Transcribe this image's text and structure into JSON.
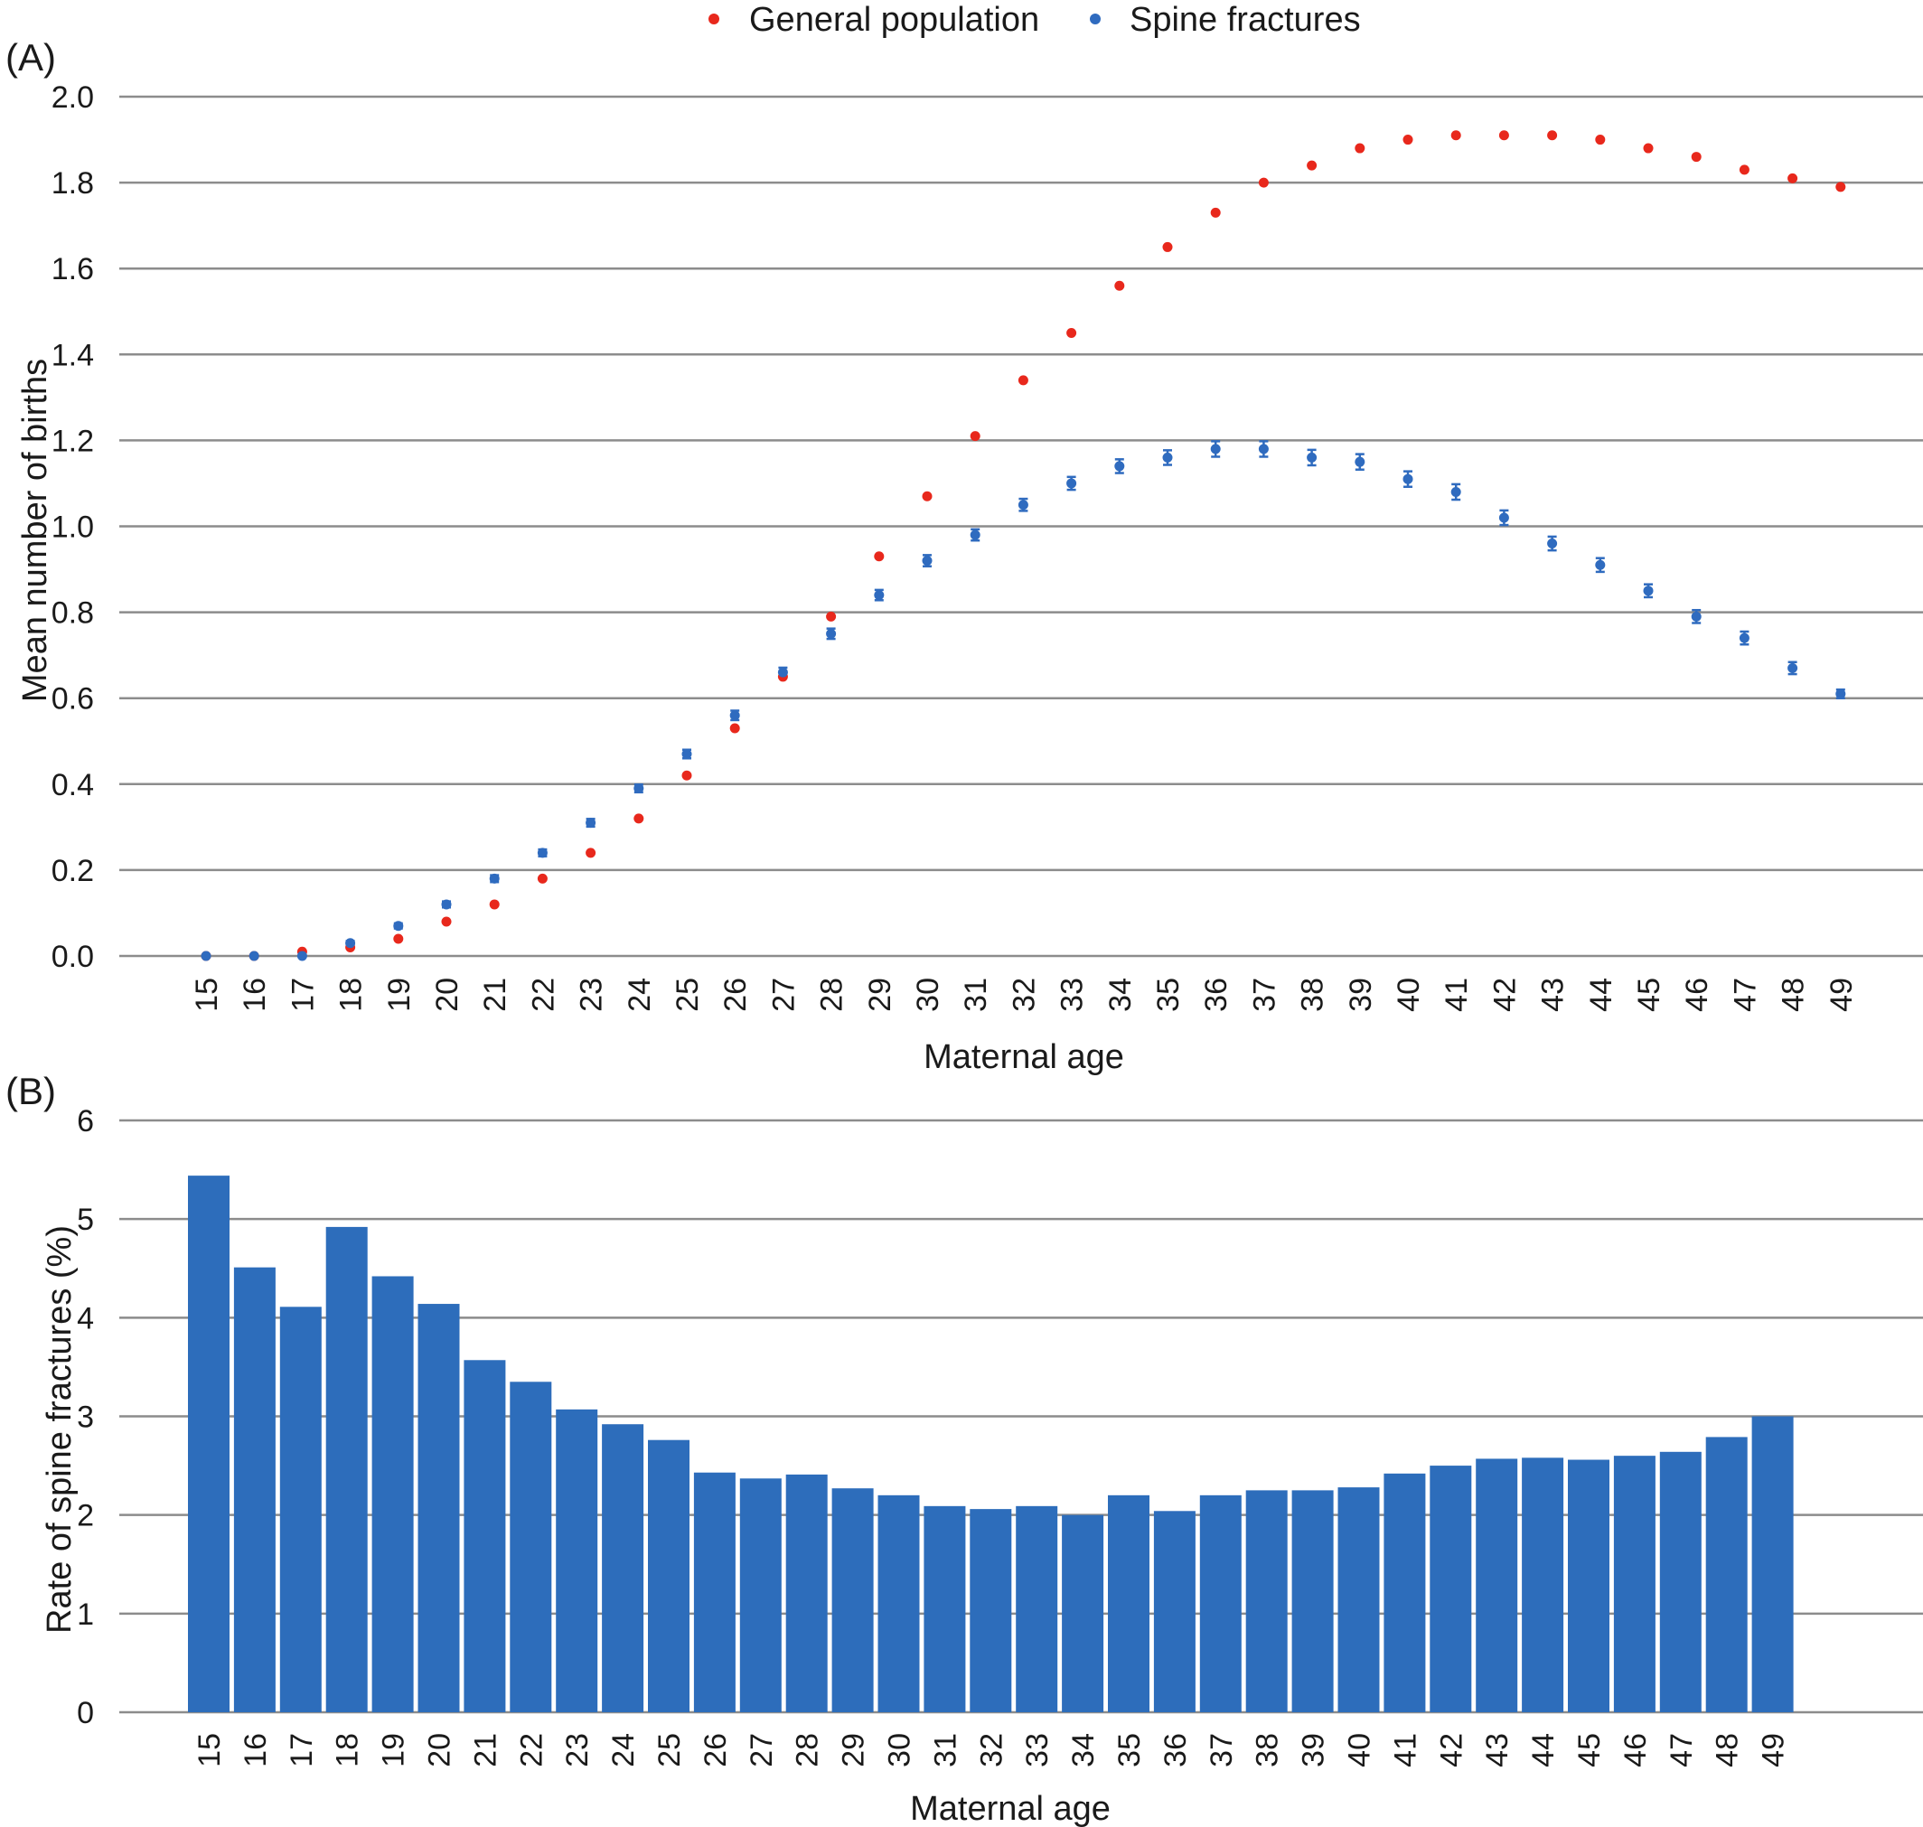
{
  "chart_data": [
    {
      "panel_label": "(A)",
      "type": "scatter",
      "xlabel": "Maternal age",
      "ylabel": "Mean number of births",
      "ylim": [
        0,
        2.0
      ],
      "yticks": [
        "0.0",
        "0.2",
        "0.4",
        "0.6",
        "0.8",
        "1.0",
        "1.2",
        "1.4",
        "1.6",
        "1.8",
        "2.0"
      ],
      "grid": "horizontal",
      "legend_position": "top-center",
      "x": [
        15,
        16,
        17,
        18,
        19,
        20,
        21,
        22,
        23,
        24,
        25,
        26,
        27,
        28,
        29,
        30,
        31,
        32,
        33,
        34,
        35,
        36,
        37,
        38,
        39,
        40,
        41,
        42,
        43,
        44,
        45,
        46,
        47,
        48,
        49
      ],
      "series": [
        {
          "name": "General population",
          "color": "#e8281c",
          "values": [
            0.0,
            0.0,
            0.01,
            0.02,
            0.04,
            0.08,
            0.12,
            0.18,
            0.24,
            0.32,
            0.42,
            0.53,
            0.65,
            0.79,
            0.93,
            1.07,
            1.21,
            1.34,
            1.45,
            1.56,
            1.65,
            1.73,
            1.8,
            1.84,
            1.88,
            1.9,
            1.91,
            1.91,
            1.91,
            1.9,
            1.88,
            1.86,
            1.83,
            1.81,
            1.79
          ]
        },
        {
          "name": "Spine fractures",
          "color": "#2f6bbf",
          "error_bars": true,
          "values": [
            0.0,
            0.0,
            0.0,
            0.03,
            0.07,
            0.12,
            0.18,
            0.24,
            0.31,
            0.39,
            0.47,
            0.56,
            0.66,
            0.75,
            0.84,
            0.92,
            0.98,
            1.05,
            1.1,
            1.14,
            1.16,
            1.18,
            1.18,
            1.16,
            1.15,
            1.11,
            1.08,
            1.02,
            0.96,
            0.91,
            0.85,
            0.79,
            0.74,
            0.67,
            0.61
          ],
          "errors": [
            0.0,
            0.0,
            0.0,
            0.005,
            0.006,
            0.007,
            0.008,
            0.008,
            0.009,
            0.009,
            0.01,
            0.011,
            0.011,
            0.012,
            0.012,
            0.013,
            0.013,
            0.014,
            0.015,
            0.016,
            0.017,
            0.018,
            0.018,
            0.018,
            0.018,
            0.018,
            0.018,
            0.017,
            0.016,
            0.016,
            0.015,
            0.015,
            0.015,
            0.014,
            0.01
          ]
        }
      ]
    },
    {
      "panel_label": "(B)",
      "type": "bar",
      "xlabel": "Maternal age",
      "ylabel": "Rate of spine fractures (%)",
      "ylim": [
        0,
        6
      ],
      "yticks": [
        "0",
        "1",
        "2",
        "3",
        "4",
        "5",
        "6"
      ],
      "grid": "horizontal",
      "categories": [
        "15",
        "16",
        "17",
        "18",
        "19",
        "20",
        "21",
        "22",
        "23",
        "24",
        "25",
        "26",
        "27",
        "28",
        "29",
        "30",
        "31",
        "32",
        "33",
        "34",
        "35",
        "36",
        "37",
        "38",
        "39",
        "40",
        "41",
        "42",
        "43",
        "44",
        "45",
        "46",
        "47",
        "48",
        "49"
      ],
      "series": [
        {
          "color": "#2d6dbb",
          "values": [
            5.44,
            4.51,
            4.11,
            4.92,
            4.42,
            4.14,
            3.57,
            3.35,
            3.07,
            2.92,
            2.76,
            2.43,
            2.37,
            2.41,
            2.27,
            2.2,
            2.09,
            2.06,
            2.09,
            2.0,
            2.2,
            2.04,
            2.2,
            2.25,
            2.25,
            2.28,
            2.42,
            2.5,
            2.57,
            2.58,
            2.56,
            2.6,
            2.64,
            2.79,
            3.0
          ]
        }
      ]
    }
  ]
}
